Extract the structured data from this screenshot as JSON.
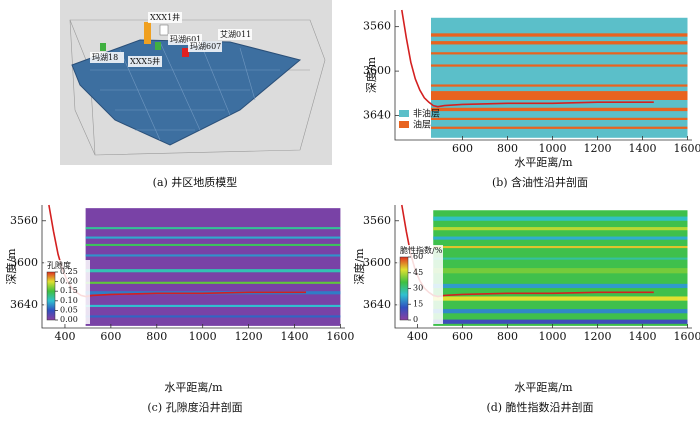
{
  "model": {
    "caption": "(a) 井区地质模型",
    "labels": [
      "XXX1井",
      "玛湖18",
      "玛湖601",
      "艾湖011",
      "玛湖607",
      "XXX5井"
    ]
  },
  "chart_data": [
    {
      "type": "section",
      "caption": "(b) 含油性沿井剖面",
      "xlabel": "水平距离/m",
      "ylabel": "深度/m",
      "xlim": [
        300,
        1620
      ],
      "xticks": [
        600,
        800,
        1000,
        1200,
        1400,
        1600
      ],
      "ylim": [
        3545,
        3662
      ],
      "y_inverted": true,
      "yticks": [
        3560,
        3600,
        3640
      ],
      "section_x": [
        460,
        1600
      ],
      "legend": "lower left",
      "series": [
        {
          "name": "非油层",
          "color": "#5bbfc9",
          "bands": [
            [
              3552,
              3660
            ]
          ]
        },
        {
          "name": "油层",
          "color": "#e8631f",
          "bands": [
            [
              3566,
              3569
            ],
            [
              3573,
              3576
            ],
            [
              3583,
              3585
            ],
            [
              3594,
              3596
            ],
            [
              3612,
              3614
            ],
            [
              3618,
              3626
            ],
            [
              3633,
              3636
            ],
            [
              3642,
              3644
            ],
            [
              3650,
              3652
            ]
          ]
        }
      ],
      "trajectory": {
        "color": "#d42020",
        "x": [
          330,
          350,
          370,
          390,
          410,
          430,
          450,
          470,
          490,
          520,
          600,
          800,
          1000,
          1200,
          1450
        ],
        "depth": [
          3545,
          3570,
          3592,
          3607,
          3617,
          3624,
          3628,
          3631,
          3632,
          3631,
          3630,
          3629,
          3629,
          3628,
          3628
        ]
      }
    },
    {
      "type": "section",
      "caption": "(c) 孔隙度沿井剖面",
      "xlabel": "水平距离/m",
      "ylabel": "深度/m",
      "xlim": [
        300,
        1620
      ],
      "xticks": [
        400,
        600,
        800,
        1000,
        1200,
        1400,
        1600
      ],
      "ylim": [
        3545,
        3662
      ],
      "y_inverted": true,
      "yticks": [
        3560,
        3600,
        3640
      ],
      "section_x": [
        490,
        1600
      ],
      "section_depth": [
        3548,
        3660
      ],
      "background_value": 0.01,
      "bands": [
        [
          3566,
          3568,
          0.12
        ],
        [
          3575,
          3577,
          0.09
        ],
        [
          3582,
          3584,
          0.14
        ],
        [
          3592,
          3594,
          0.08
        ],
        [
          3606,
          3609,
          0.11
        ],
        [
          3618,
          3620,
          0.16
        ],
        [
          3627,
          3630,
          0.07
        ],
        [
          3640,
          3642,
          0.1
        ],
        [
          3650,
          3652,
          0.06
        ]
      ],
      "colorbar": {
        "title": "孔隙度",
        "lim": [
          0,
          0.25
        ],
        "colors": [
          "#8b3fa0",
          "#3050c0",
          "#30c0d0",
          "#40c040",
          "#e0e030",
          "#e03020"
        ],
        "ticks": [
          {
            "value": 0,
            "label": "0.00"
          },
          {
            "value": 0.05,
            "label": "0.05"
          },
          {
            "value": 0.1,
            "label": "0.10"
          },
          {
            "value": 0.15,
            "label": "0.15"
          },
          {
            "value": 0.2,
            "label": "0.20"
          },
          {
            "value": 0.25,
            "label": "0.25"
          }
        ]
      },
      "trajectory": {
        "color": "#d42020",
        "x": [
          330,
          350,
          370,
          390,
          410,
          430,
          450,
          470,
          490,
          520,
          600,
          800,
          1000,
          1200,
          1450
        ],
        "depth": [
          3545,
          3570,
          3592,
          3607,
          3617,
          3624,
          3628,
          3631,
          3632,
          3631,
          3630,
          3629,
          3629,
          3628,
          3628
        ]
      }
    },
    {
      "type": "section",
      "caption": "(d) 脆性指数沿井剖面",
      "xlabel": "水平距离/m",
      "ylabel": "深度/m",
      "xlim": [
        300,
        1620
      ],
      "xticks": [
        400,
        600,
        800,
        1000,
        1200,
        1400,
        1600
      ],
      "ylim": [
        3545,
        3662
      ],
      "y_inverted": true,
      "yticks": [
        3560,
        3600,
        3640
      ],
      "section_x": [
        470,
        1600
      ],
      "section_depth": [
        3550,
        3660
      ],
      "background_value": 35,
      "bands": [
        [
          3556,
          3560,
          25
        ],
        [
          3566,
          3569,
          45
        ],
        [
          3575,
          3578,
          22
        ],
        [
          3584,
          3586,
          50
        ],
        [
          3595,
          3597,
          28
        ],
        [
          3605,
          3610,
          40
        ],
        [
          3620,
          3624,
          20
        ],
        [
          3632,
          3636,
          48
        ],
        [
          3644,
          3648,
          18
        ],
        [
          3654,
          3658,
          10
        ]
      ],
      "colorbar": {
        "title": "脆性指数/%",
        "lim": [
          0,
          60
        ],
        "colors": [
          "#8b3fa0",
          "#3050c0",
          "#30c0d0",
          "#40c040",
          "#e0e030",
          "#e03020"
        ],
        "ticks": [
          0,
          15,
          30,
          45,
          60
        ]
      },
      "trajectory": {
        "color": "#d42020",
        "x": [
          330,
          350,
          370,
          390,
          410,
          430,
          450,
          470,
          490,
          520,
          600,
          800,
          1000,
          1200,
          1450
        ],
        "depth": [
          3545,
          3570,
          3592,
          3607,
          3617,
          3624,
          3628,
          3631,
          3632,
          3631,
          3630,
          3629,
          3629,
          3628,
          3628
        ]
      }
    }
  ]
}
